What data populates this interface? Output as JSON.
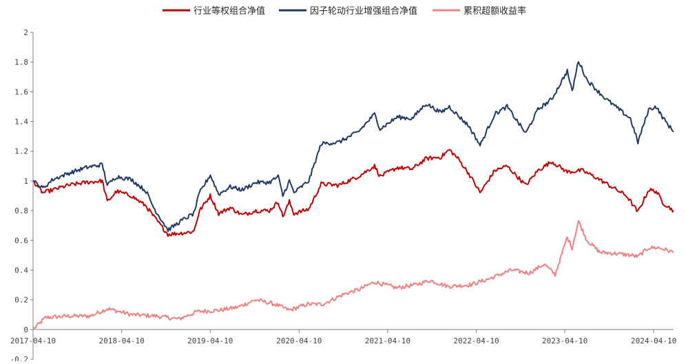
{
  "chart_data": {
    "type": "line",
    "legend_position": "top-center",
    "grid": false,
    "x_ticks": [
      "2017-04-10",
      "2018-04-10",
      "2019-04-10",
      "2020-04-10",
      "2021-04-10",
      "2022-04-10",
      "2023-04-10",
      "2024-04-10"
    ],
    "y_ticks": [
      "-0.2",
      "0",
      "0.2",
      "0.4",
      "0.6",
      "0.8",
      "1",
      "1.2",
      "1.4",
      "1.6",
      "1.8",
      "2"
    ],
    "xlim": [
      "2017-04-10",
      "2024-07-01"
    ],
    "ylim": [
      -0.2,
      2
    ],
    "series": [
      {
        "name": "行业等权组合净值",
        "color": "#c00000",
        "points": [
          [
            "2017-04-10",
            1.0
          ],
          [
            "2017-05-20",
            0.92
          ],
          [
            "2017-07-01",
            0.94
          ],
          [
            "2017-09-01",
            0.97
          ],
          [
            "2017-11-15",
            0.99
          ],
          [
            "2018-01-20",
            1.0
          ],
          [
            "2018-02-10",
            0.86
          ],
          [
            "2018-03-20",
            0.93
          ],
          [
            "2018-05-20",
            0.9
          ],
          [
            "2018-07-20",
            0.83
          ],
          [
            "2018-08-20",
            0.76
          ],
          [
            "2018-10-18",
            0.64
          ],
          [
            "2018-12-20",
            0.65
          ],
          [
            "2019-02-01",
            0.66
          ],
          [
            "2019-02-25",
            0.8
          ],
          [
            "2019-04-10",
            0.9
          ],
          [
            "2019-05-15",
            0.78
          ],
          [
            "2019-07-01",
            0.82
          ],
          [
            "2019-08-20",
            0.77
          ],
          [
            "2019-10-15",
            0.8
          ],
          [
            "2019-12-10",
            0.8
          ],
          [
            "2020-01-15",
            0.86
          ],
          [
            "2020-02-03",
            0.76
          ],
          [
            "2020-03-01",
            0.86
          ],
          [
            "2020-03-20",
            0.78
          ],
          [
            "2020-05-20",
            0.81
          ],
          [
            "2020-07-10",
            0.98
          ],
          [
            "2020-09-20",
            0.97
          ],
          [
            "2020-12-10",
            1.03
          ],
          [
            "2021-02-15",
            1.1
          ],
          [
            "2021-03-10",
            1.03
          ],
          [
            "2021-05-20",
            1.09
          ],
          [
            "2021-07-20",
            1.08
          ],
          [
            "2021-09-15",
            1.15
          ],
          [
            "2021-11-15",
            1.16
          ],
          [
            "2021-12-20",
            1.21
          ],
          [
            "2022-01-25",
            1.15
          ],
          [
            "2022-03-10",
            1.05
          ],
          [
            "2022-04-26",
            0.92
          ],
          [
            "2022-06-25",
            1.07
          ],
          [
            "2022-08-15",
            1.1
          ],
          [
            "2022-10-31",
            0.97
          ],
          [
            "2022-12-20",
            1.07
          ],
          [
            "2023-02-15",
            1.13
          ],
          [
            "2023-04-20",
            1.06
          ],
          [
            "2023-06-20",
            1.07
          ],
          [
            "2023-08-20",
            1.02
          ],
          [
            "2023-10-20",
            0.96
          ],
          [
            "2023-12-20",
            0.9
          ],
          [
            "2024-02-05",
            0.79
          ],
          [
            "2024-03-20",
            0.94
          ],
          [
            "2024-04-20",
            0.93
          ],
          [
            "2024-05-20",
            0.85
          ],
          [
            "2024-07-01",
            0.8
          ]
        ]
      },
      {
        "name": "因子轮动行业增强组合净值",
        "color": "#1f3864",
        "points": [
          [
            "2017-04-10",
            1.0
          ],
          [
            "2017-05-20",
            0.95
          ],
          [
            "2017-07-01",
            1.01
          ],
          [
            "2017-09-01",
            1.05
          ],
          [
            "2017-11-15",
            1.09
          ],
          [
            "2018-01-20",
            1.11
          ],
          [
            "2018-02-10",
            0.97
          ],
          [
            "2018-03-20",
            1.03
          ],
          [
            "2018-05-20",
            1.01
          ],
          [
            "2018-07-20",
            0.93
          ],
          [
            "2018-08-20",
            0.82
          ],
          [
            "2018-10-18",
            0.67
          ],
          [
            "2018-12-20",
            0.74
          ],
          [
            "2019-02-01",
            0.78
          ],
          [
            "2019-02-25",
            0.92
          ],
          [
            "2019-04-10",
            1.04
          ],
          [
            "2019-05-15",
            0.91
          ],
          [
            "2019-07-01",
            0.96
          ],
          [
            "2019-08-20",
            0.94
          ],
          [
            "2019-10-15",
            0.99
          ],
          [
            "2019-12-10",
            0.99
          ],
          [
            "2020-01-15",
            1.03
          ],
          [
            "2020-02-03",
            0.9
          ],
          [
            "2020-03-01",
            1.0
          ],
          [
            "2020-03-20",
            0.92
          ],
          [
            "2020-05-20",
            1.0
          ],
          [
            "2020-07-10",
            1.25
          ],
          [
            "2020-09-20",
            1.26
          ],
          [
            "2020-12-10",
            1.33
          ],
          [
            "2021-02-15",
            1.45
          ],
          [
            "2021-03-10",
            1.35
          ],
          [
            "2021-05-20",
            1.43
          ],
          [
            "2021-07-20",
            1.42
          ],
          [
            "2021-09-15",
            1.52
          ],
          [
            "2021-11-15",
            1.46
          ],
          [
            "2021-12-20",
            1.5
          ],
          [
            "2022-01-25",
            1.44
          ],
          [
            "2022-03-10",
            1.37
          ],
          [
            "2022-04-26",
            1.24
          ],
          [
            "2022-06-25",
            1.45
          ],
          [
            "2022-08-15",
            1.5
          ],
          [
            "2022-10-31",
            1.32
          ],
          [
            "2022-12-20",
            1.48
          ],
          [
            "2023-02-15",
            1.55
          ],
          [
            "2023-04-20",
            1.74
          ],
          [
            "2023-05-10",
            1.6
          ],
          [
            "2023-06-05",
            1.81
          ],
          [
            "2023-07-10",
            1.68
          ],
          [
            "2023-09-20",
            1.56
          ],
          [
            "2023-11-20",
            1.48
          ],
          [
            "2024-01-05",
            1.42
          ],
          [
            "2024-02-05",
            1.26
          ],
          [
            "2024-03-20",
            1.48
          ],
          [
            "2024-04-20",
            1.5
          ],
          [
            "2024-05-20",
            1.42
          ],
          [
            "2024-07-01",
            1.33
          ]
        ]
      },
      {
        "name": "累积超额收益率",
        "color": "#f08080",
        "points": [
          [
            "2017-04-10",
            0.0
          ],
          [
            "2017-06-01",
            0.08
          ],
          [
            "2017-09-01",
            0.09
          ],
          [
            "2017-12-01",
            0.09
          ],
          [
            "2018-02-10",
            0.14
          ],
          [
            "2018-05-20",
            0.1
          ],
          [
            "2018-09-01",
            0.09
          ],
          [
            "2018-12-01",
            0.07
          ],
          [
            "2019-02-15",
            0.12
          ],
          [
            "2019-05-20",
            0.13
          ],
          [
            "2019-08-01",
            0.15
          ],
          [
            "2019-10-15",
            0.2
          ],
          [
            "2020-01-01",
            0.17
          ],
          [
            "2020-03-01",
            0.13
          ],
          [
            "2020-05-15",
            0.17
          ],
          [
            "2020-07-15",
            0.17
          ],
          [
            "2020-10-15",
            0.24
          ],
          [
            "2020-12-15",
            0.27
          ],
          [
            "2021-02-15",
            0.32
          ],
          [
            "2021-05-15",
            0.28
          ],
          [
            "2021-08-01",
            0.3
          ],
          [
            "2021-10-01",
            0.33
          ],
          [
            "2021-12-15",
            0.29
          ],
          [
            "2022-03-15",
            0.3
          ],
          [
            "2022-06-01",
            0.34
          ],
          [
            "2022-09-01",
            0.4
          ],
          [
            "2022-11-15",
            0.38
          ],
          [
            "2023-01-15",
            0.44
          ],
          [
            "2023-03-01",
            0.37
          ],
          [
            "2023-04-20",
            0.62
          ],
          [
            "2023-05-10",
            0.55
          ],
          [
            "2023-06-05",
            0.73
          ],
          [
            "2023-07-10",
            0.6
          ],
          [
            "2023-09-01",
            0.52
          ],
          [
            "2023-11-15",
            0.51
          ],
          [
            "2024-01-05",
            0.5
          ],
          [
            "2024-02-05",
            0.49
          ],
          [
            "2024-03-20",
            0.55
          ],
          [
            "2024-05-01",
            0.55
          ],
          [
            "2024-07-01",
            0.52
          ]
        ]
      }
    ]
  }
}
